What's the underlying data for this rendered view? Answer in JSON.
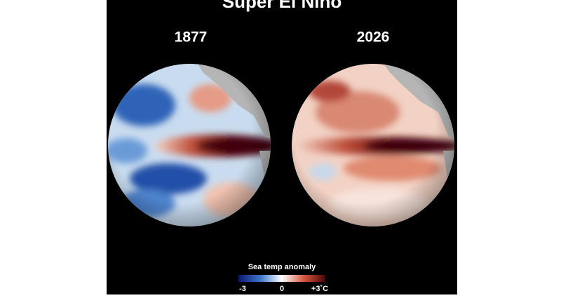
{
  "title": "Super El Nino",
  "panels": [
    {
      "label": "1877"
    },
    {
      "label": "2026"
    }
  ],
  "legend": {
    "title": "Sea temp anomaly",
    "ticks": [
      "-3",
      "0",
      "+3˚C"
    ]
  }
}
